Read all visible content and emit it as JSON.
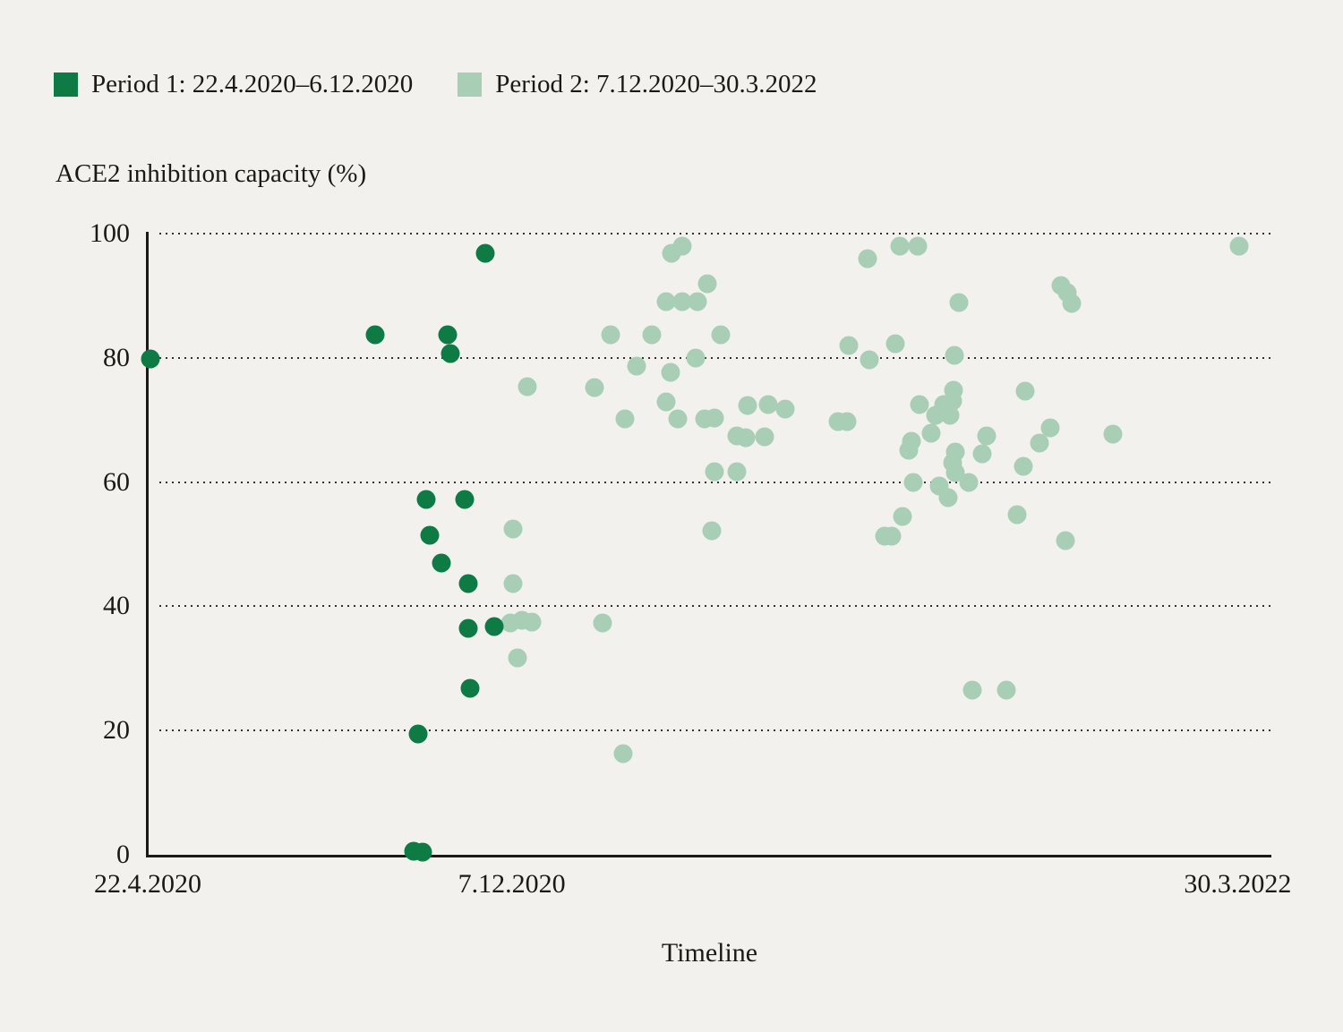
{
  "page": {
    "background": "#f2f1ed",
    "text_color": "#1c1914"
  },
  "legend": {
    "items": [
      {
        "label": "Period 1: 22.4.2020–6.12.2020",
        "color": "#0f7b44"
      },
      {
        "label": "Period 2: 7.12.2020–30.3.2022",
        "color": "#a8ceb5"
      }
    ]
  },
  "chart_data": {
    "type": "scatter",
    "ylabel": "ACE2 inhibition capacity (%)",
    "xlabel": "Timeline",
    "ylim": [
      0,
      100
    ],
    "y_ticks": [
      0,
      20,
      40,
      60,
      80,
      100
    ],
    "grid": "horizontal-dotted",
    "x_axis_note": "x expressed as percent of timeline from 22.4.2020 to 30.3.2022",
    "x_tick_labels": [
      "22.4.2020",
      "7.12.2020",
      "30.3.2022"
    ],
    "x_tick_positions_pct": [
      0,
      32.4,
      97
    ],
    "series": [
      {
        "name": "Period 1: 22.4.2020–6.12.2020",
        "color": "#0f7b44",
        "points": [
          [
            0.2,
            79.8
          ],
          [
            20.2,
            83.7
          ],
          [
            26.7,
            83.7
          ],
          [
            26.9,
            80.7
          ],
          [
            30.0,
            96.8
          ],
          [
            24.8,
            57.2
          ],
          [
            28.2,
            57.2
          ],
          [
            25.1,
            51.4
          ],
          [
            26.1,
            47.0
          ],
          [
            28.5,
            43.7
          ],
          [
            28.5,
            36.5
          ],
          [
            30.8,
            36.7
          ],
          [
            28.7,
            26.8
          ],
          [
            24.1,
            19.5
          ],
          [
            23.7,
            0.6
          ],
          [
            24.5,
            0.4
          ]
        ]
      },
      {
        "name": "Period 2: 7.12.2020–30.3.2022",
        "color": "#a8ceb5",
        "points": [
          [
            33.8,
            75.3
          ],
          [
            32.5,
            52.4
          ],
          [
            32.5,
            43.7
          ],
          [
            32.3,
            37.3
          ],
          [
            33.3,
            37.8
          ],
          [
            34.2,
            37.5
          ],
          [
            32.9,
            31.7
          ],
          [
            39.8,
            75.2
          ],
          [
            40.5,
            37.3
          ],
          [
            42.3,
            16.3
          ],
          [
            41.2,
            83.7
          ],
          [
            44.9,
            83.7
          ],
          [
            42.5,
            70.2
          ],
          [
            43.5,
            78.7
          ],
          [
            46.1,
            89.1
          ],
          [
            47.6,
            89.1
          ],
          [
            48.9,
            89.1
          ],
          [
            46.6,
            96.8
          ],
          [
            47.6,
            98.0
          ],
          [
            49.8,
            91.9
          ],
          [
            51.0,
            83.7
          ],
          [
            46.5,
            77.6
          ],
          [
            48.8,
            80.0
          ],
          [
            46.1,
            72.9
          ],
          [
            47.2,
            70.2
          ],
          [
            49.6,
            70.2
          ],
          [
            50.4,
            70.3
          ],
          [
            53.4,
            72.3
          ],
          [
            55.2,
            72.5
          ],
          [
            56.7,
            71.8
          ],
          [
            52.4,
            67.4
          ],
          [
            53.2,
            67.1
          ],
          [
            54.9,
            67.3
          ],
          [
            50.4,
            61.7
          ],
          [
            52.4,
            61.7
          ],
          [
            50.2,
            52.2
          ],
          [
            61.4,
            69.7
          ],
          [
            62.2,
            69.7
          ],
          [
            64.1,
            96.0
          ],
          [
            66.9,
            98.0
          ],
          [
            68.5,
            98.0
          ],
          [
            62.4,
            82.0
          ],
          [
            66.5,
            82.3
          ],
          [
            64.2,
            79.7
          ],
          [
            72.2,
            88.9
          ],
          [
            71.8,
            80.4
          ],
          [
            68.7,
            72.5
          ],
          [
            71.7,
            74.8
          ],
          [
            70.8,
            72.5
          ],
          [
            71.6,
            73.0
          ],
          [
            70.1,
            70.8
          ],
          [
            71.4,
            70.8
          ],
          [
            69.7,
            67.9
          ],
          [
            68.0,
            66.6
          ],
          [
            67.7,
            65.1
          ],
          [
            74.7,
            67.4
          ],
          [
            74.3,
            64.6
          ],
          [
            71.9,
            64.8
          ],
          [
            71.6,
            63.1
          ],
          [
            71.9,
            61.5
          ],
          [
            70.4,
            59.4
          ],
          [
            68.1,
            59.9
          ],
          [
            73.1,
            59.9
          ],
          [
            71.2,
            57.5
          ],
          [
            67.2,
            54.5
          ],
          [
            65.6,
            51.3
          ],
          [
            66.2,
            51.3
          ],
          [
            78.1,
            74.6
          ],
          [
            77.4,
            54.8
          ],
          [
            77.9,
            62.5
          ],
          [
            80.3,
            68.7
          ],
          [
            79.4,
            66.3
          ],
          [
            81.3,
            91.6
          ],
          [
            81.8,
            90.5
          ],
          [
            82.2,
            88.8
          ],
          [
            81.7,
            50.6
          ],
          [
            73.4,
            26.5
          ],
          [
            76.4,
            26.5
          ],
          [
            85.9,
            67.7
          ],
          [
            97.1,
            98.0
          ]
        ]
      }
    ]
  }
}
